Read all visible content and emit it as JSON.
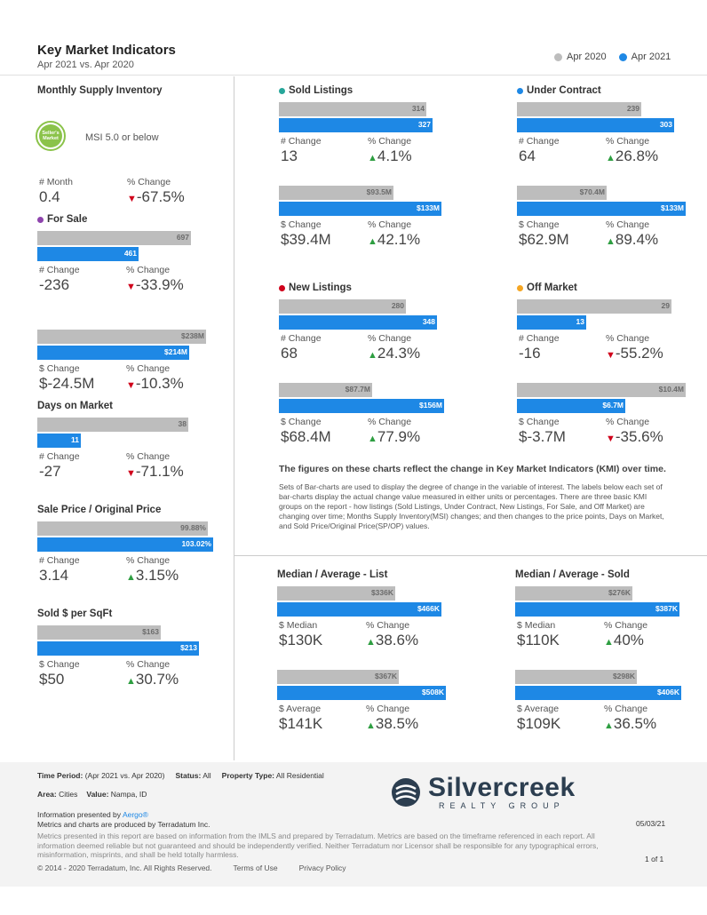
{
  "header": {
    "title": "Key Market Indicators",
    "subtitle": "Apr 2021 vs. Apr 2020"
  },
  "legend": [
    {
      "name": "Apr 2020",
      "color": "#bdbdbd"
    },
    {
      "name": "Apr 2021",
      "color": "#1e88e5"
    }
  ],
  "colors": {
    "prev": "#bdbdbd",
    "curr": "#1e88e5",
    "sold": "#26a69a",
    "under": "#1e88e5",
    "forsale": "#8e44ad",
    "new": "#d0021b",
    "off": "#f5a623",
    "up": "#2e9e41",
    "down": "#d0021b"
  },
  "msi": {
    "title": "Monthly Supply Inventory",
    "badge_icon": "sellers-market-badge-icon",
    "badge_text": "Seller's Market",
    "label": "MSI 5.0 or below",
    "cap1": "# Month",
    "val1": "0.4",
    "cap2": "% Change",
    "val2": "-67.5%",
    "dir2": "down"
  },
  "chart_data": [
    {
      "type": "bar",
      "title": "For Sale",
      "section": "forsale",
      "values": [
        697,
        461
      ],
      "labels": [
        "697",
        "461"
      ],
      "change_cap": "# Change",
      "change": "-236",
      "pct_cap": "% Change",
      "pct": "-33.9%",
      "dir": "down"
    },
    {
      "type": "bar",
      "title": "",
      "section": "forsale-dollar",
      "values": [
        238,
        214
      ],
      "labels": [
        "$238M",
        "$214M"
      ],
      "change_cap": "$ Change",
      "change": "$-24.5M",
      "pct_cap": "% Change",
      "pct": "-10.3%",
      "dir": "down"
    },
    {
      "type": "bar",
      "title": "Days on Market",
      "section": "dom",
      "values": [
        38,
        11
      ],
      "labels": [
        "38",
        "11"
      ],
      "change_cap": "# Change",
      "change": "-27",
      "pct_cap": "% Change",
      "pct": "-71.1%",
      "dir": "down"
    },
    {
      "type": "bar",
      "title": "Sale Price / Original Price",
      "section": "spop",
      "values": [
        99.88,
        103.02
      ],
      "labels": [
        "99.88%",
        "103.02%"
      ],
      "change_cap": "# Change",
      "change": "3.14",
      "pct_cap": "% Change",
      "pct": "3.15%",
      "dir": "up"
    },
    {
      "type": "bar",
      "title": "Sold $ per SqFt",
      "section": "sqft",
      "values": [
        163,
        213
      ],
      "labels": [
        "$163",
        "$213"
      ],
      "change_cap": "$ Change",
      "change": "$50",
      "pct_cap": "% Change",
      "pct": "30.7%",
      "dir": "up"
    },
    {
      "type": "bar",
      "title": "Sold Listings",
      "section": "sold",
      "values": [
        314,
        327
      ],
      "labels": [
        "314",
        "327"
      ],
      "change_cap": "# Change",
      "change": "13",
      "pct_cap": "% Change",
      "pct": "4.1%",
      "dir": "up"
    },
    {
      "type": "bar",
      "title": "",
      "section": "sold-dollar",
      "values": [
        93.5,
        133
      ],
      "labels": [
        "$93.5M",
        "$133M"
      ],
      "change_cap": "$ Change",
      "change": "$39.4M",
      "pct_cap": "% Change",
      "pct": "42.1%",
      "dir": "up"
    },
    {
      "type": "bar",
      "title": "Under Contract",
      "section": "under",
      "values": [
        239,
        303
      ],
      "labels": [
        "239",
        "303"
      ],
      "change_cap": "# Change",
      "change": "64",
      "pct_cap": "% Change",
      "pct": "26.8%",
      "dir": "up"
    },
    {
      "type": "bar",
      "title": "",
      "section": "under-dollar",
      "values": [
        70.4,
        133
      ],
      "labels": [
        "$70.4M",
        "$133M"
      ],
      "change_cap": "$ Change",
      "change": "$62.9M",
      "pct_cap": "% Change",
      "pct": "89.4%",
      "dir": "up"
    },
    {
      "type": "bar",
      "title": "New Listings",
      "section": "new",
      "values": [
        280,
        348
      ],
      "labels": [
        "280",
        "348"
      ],
      "change_cap": "# Change",
      "change": "68",
      "pct_cap": "% Change",
      "pct": "24.3%",
      "dir": "up"
    },
    {
      "type": "bar",
      "title": "",
      "section": "new-dollar",
      "values": [
        87.7,
        156
      ],
      "labels": [
        "$87.7M",
        "$156M"
      ],
      "change_cap": "$ Change",
      "change": "$68.4M",
      "pct_cap": "% Change",
      "pct": "77.9%",
      "dir": "up"
    },
    {
      "type": "bar",
      "title": "Off Market",
      "section": "off",
      "values": [
        29,
        13
      ],
      "labels": [
        "29",
        "13"
      ],
      "change_cap": "# Change",
      "change": "-16",
      "pct_cap": "% Change",
      "pct": "-55.2%",
      "dir": "down"
    },
    {
      "type": "bar",
      "title": "",
      "section": "off-dollar",
      "values": [
        10.4,
        6.7
      ],
      "labels": [
        "$10.4M",
        "$6.7M"
      ],
      "change_cap": "$ Change",
      "change": "$-3.7M",
      "pct_cap": "% Change",
      "pct": "-35.6%",
      "dir": "down"
    },
    {
      "type": "bar",
      "title": "Median / Average - List",
      "section": "list-median",
      "values": [
        336,
        466
      ],
      "labels": [
        "$336K",
        "$466K"
      ],
      "change_cap": "$ Median",
      "change": "$130K",
      "pct_cap": "% Change",
      "pct": "38.6%",
      "dir": "up"
    },
    {
      "type": "bar",
      "title": "",
      "section": "list-average",
      "values": [
        367,
        508
      ],
      "labels": [
        "$367K",
        "$508K"
      ],
      "change_cap": "$ Average",
      "change": "$141K",
      "pct_cap": "% Change",
      "pct": "38.5%",
      "dir": "up"
    },
    {
      "type": "bar",
      "title": "Median / Average - Sold",
      "section": "sold-median",
      "values": [
        276,
        387
      ],
      "labels": [
        "$276K",
        "$387K"
      ],
      "change_cap": "$ Median",
      "change": "$110K",
      "pct_cap": "% Change",
      "pct": "40%",
      "dir": "up"
    },
    {
      "type": "bar",
      "title": "",
      "section": "sold-average",
      "values": [
        298,
        406
      ],
      "labels": [
        "$298K",
        "$406K"
      ],
      "change_cap": "$ Average",
      "change": "$109K",
      "pct_cap": "% Change",
      "pct": "36.5%",
      "dir": "up"
    }
  ],
  "explain": {
    "heading": "The figures on these charts reflect the change in Key Market Indicators (KMI) over time.",
    "body": "Sets of Bar-charts are used to display the degree of change in the variable of interest. The labels below each set of bar-charts display the actual change value measured in either units or percentages. There are three basic KMI groups on the report - how listings (Sold Listings, Under Contract, New Listings, For Sale, and Off Market) are changing over time; Months Supply Inventory(MSI) changes; and then changes to the price points, Days on Market, and Sold Price/Original Price(SP/OP) values."
  },
  "footer": {
    "time_period_label": "Time Period:",
    "time_period": "(Apr 2021 vs. Apr 2020)",
    "status_label": "Status:",
    "status": "All",
    "property_label": "Property Type:",
    "property": "All Residential",
    "area_label": "Area:",
    "area": "Cities",
    "value_label": "Value:",
    "value": "Nampa, ID",
    "presented": "Information presented by",
    "aergo": "Aergo®",
    "produced": "Metrics and charts are produced by Terradatum Inc.",
    "disclaimer": "Metrics presented in this report are based on information from the IMLS and prepared by Terradatum. Metrics are based on the timeframe referenced in each report. All information deemed reliable but not guaranteed and should be independently verified. Neither Terradatum nor Licensor shall be responsible for any typographical errors, misinformation, misprints, and shall be held totally harmless.",
    "copyright": "© 2014 - 2020 Terradatum, Inc. All Rights Reserved.",
    "terms": "Terms of Use",
    "privacy": "Privacy Policy",
    "date": "05/03/21",
    "page": "1 of 1",
    "logo_main": "Silvercreek",
    "logo_sub": "REALTY GROUP"
  }
}
